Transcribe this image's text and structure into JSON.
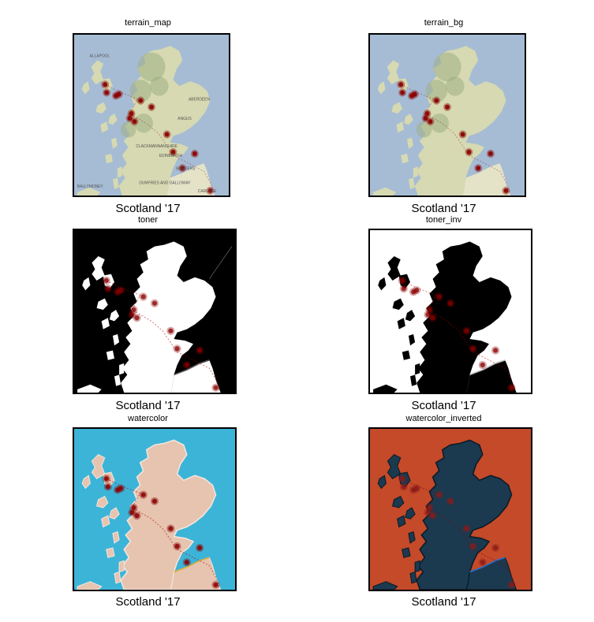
{
  "panels": [
    {
      "title": "terrain_map",
      "caption": "Scotland '17",
      "style": "terrain",
      "labels": true
    },
    {
      "title": "terrain_bg",
      "caption": "Scotland '17",
      "style": "terrain",
      "labels": false
    },
    {
      "title": "toner",
      "caption": "Scotland '17",
      "style": "toner"
    },
    {
      "title": "toner_inv",
      "caption": "Scotland '17",
      "style": "toner_inv"
    },
    {
      "title": "watercolor",
      "caption": "Scotland '17",
      "style": "watercolor"
    },
    {
      "title": "watercolor_inverted",
      "caption": "Scotland '17",
      "style": "watercolor_inv"
    }
  ],
  "map_labels": [
    "ALLAPOOL",
    "ABERDEEN",
    "ANGUS",
    "CLACKMANNANSHIRE",
    "EDINBURGH",
    "BORDERS",
    "BALLYMONEY",
    "DUMFRIES AND GALLOWAY",
    "CARLISLE"
  ],
  "colors": {
    "sea_terrain": "#a6bcd4",
    "land_terrain": "#d6d9b1",
    "land_terrain_dark": "#9fae83",
    "england_terrain": "#e4e3c8",
    "marker": "#8b0000",
    "toner_sea": "#000000",
    "toner_land": "#ffffff",
    "water_sea": "#3cb4d8",
    "water_land": "#e6c4b0",
    "water_border": "#e0b040",
    "wi_sea": "#c44a2a",
    "wi_land": "#1b3a4f",
    "wi_border": "#2b6cc4"
  }
}
